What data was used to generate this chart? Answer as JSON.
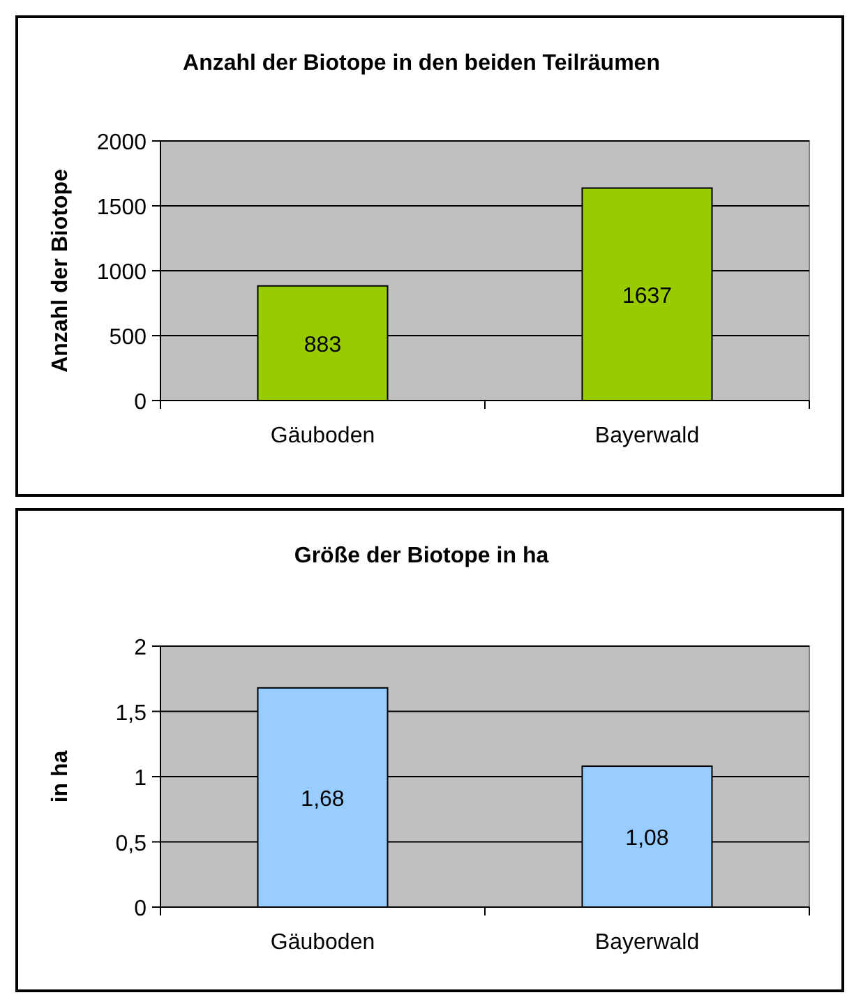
{
  "chart_data": [
    {
      "type": "bar",
      "title": "Anzahl der Biotope in den beiden Teilräumen",
      "ylabel": "Anzahl der Biotope",
      "categories": [
        "Gäuboden",
        "Bayerwald"
      ],
      "values": [
        883,
        1637
      ],
      "color": "#99cc00",
      "ylim": [
        0,
        2000
      ],
      "yticks": [
        0,
        500,
        1000,
        1500,
        2000
      ],
      "grid": "y",
      "data_labels": true
    },
    {
      "type": "bar",
      "title": "Größe der Biotope in ha",
      "ylabel": "in ha",
      "categories": [
        "Gäuboden",
        "Bayerwald"
      ],
      "values": [
        1.68,
        1.08
      ],
      "value_labels": [
        "1,68",
        "1,08"
      ],
      "color": "#99ccff",
      "ylim": [
        0,
        2
      ],
      "yticks": [
        0,
        {
          "value": 0.5,
          "label": "0,5"
        },
        1,
        {
          "value": 1.5,
          "label": "1,5"
        },
        2
      ],
      "grid": "y"
    }
  ]
}
